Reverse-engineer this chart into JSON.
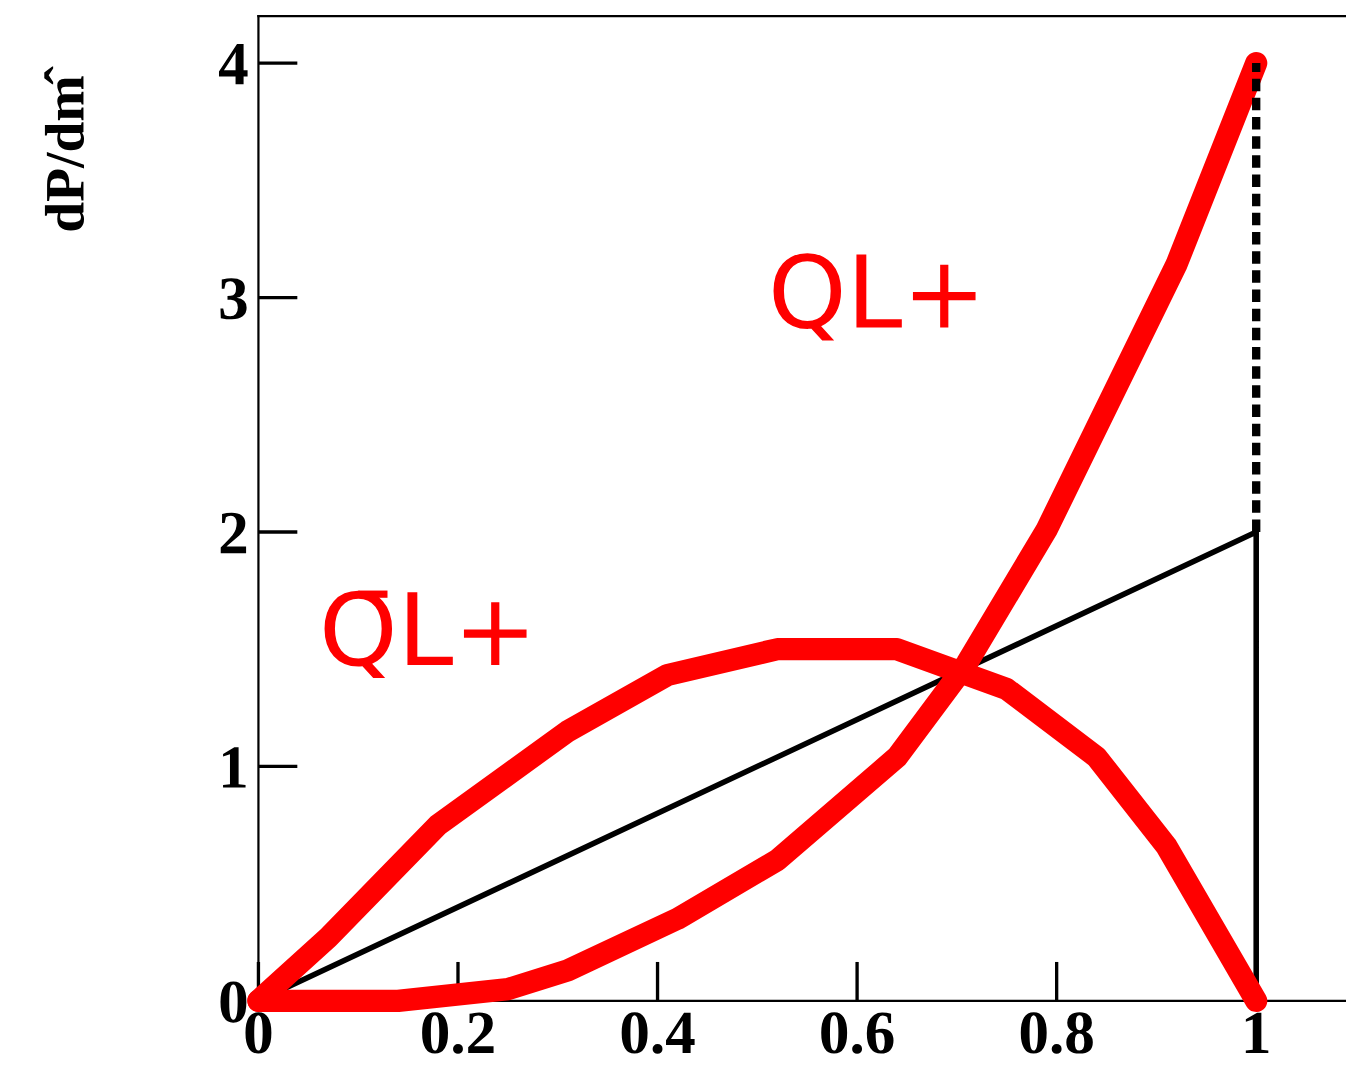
{
  "chart_data": {
    "type": "line",
    "ylabel": "dP/dm̂",
    "xlim": [
      0,
      1.09
    ],
    "ylim": [
      0,
      4.2
    ],
    "xticks": [
      0,
      0.2,
      0.4,
      0.6,
      0.8,
      1
    ],
    "yticks": [
      0,
      1,
      2,
      3,
      4
    ],
    "grid": false,
    "legend": false,
    "marker": "none",
    "series": [
      {
        "name": "QL+",
        "color": "#ff0000",
        "line_style": "solid",
        "x": [
          0,
          0.14,
          0.25,
          0.31,
          0.42,
          0.52,
          0.64,
          0.71,
          0.79,
          0.92,
          1
        ],
        "values": [
          0,
          0,
          0.05,
          0.13,
          0.35,
          0.6,
          1.04,
          1.44,
          2.01,
          3.14,
          4
        ]
      },
      {
        "name": "Q̄L+",
        "color": "#ff0000",
        "line_style": "solid",
        "x": [
          0,
          0.07,
          0.18,
          0.31,
          0.41,
          0.52,
          0.64,
          0.75,
          0.84,
          0.91,
          1
        ],
        "values": [
          0,
          0.27,
          0.75,
          1.15,
          1.39,
          1.5,
          1.5,
          1.33,
          1.04,
          0.66,
          0
        ]
      },
      {
        "color": "#000000",
        "line_style": "solid",
        "x": [
          0,
          1,
          1
        ],
        "values": [
          0,
          2,
          0
        ]
      },
      {
        "color": "#000000",
        "line_style": "dotted",
        "x": [
          1,
          1
        ],
        "values": [
          2,
          4
        ]
      }
    ]
  }
}
